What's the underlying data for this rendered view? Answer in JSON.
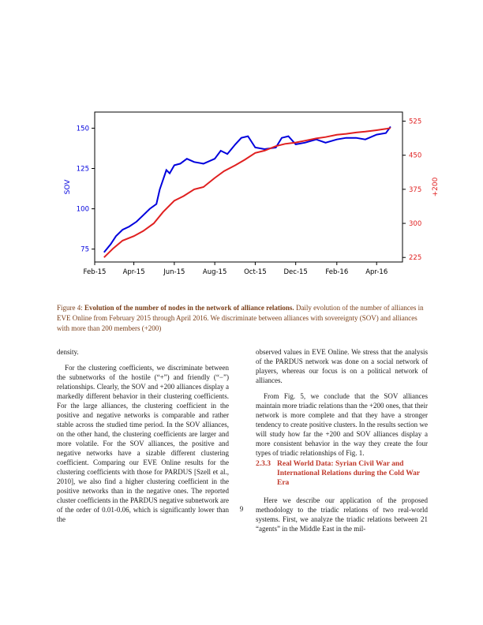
{
  "chart_data": {
    "type": "line",
    "xlabel": "",
    "ylabel": "SOV",
    "y2label": "+200",
    "x_ticks": [
      "Feb-15",
      "Apr-15",
      "Jun-15",
      "Aug-15",
      "Oct-15",
      "Dec-15",
      "Feb-16",
      "Apr-16"
    ],
    "y_ticks": [
      75,
      100,
      125,
      150
    ],
    "y2_ticks": [
      225,
      300,
      375,
      450,
      525
    ],
    "ylim": [
      67,
      160
    ],
    "y2lim": [
      215,
      545
    ],
    "grid": false,
    "colors": {
      "sov": "#0000dd",
      "plus200": "#e02020"
    },
    "series": [
      {
        "axis": "left",
        "points": [
          [
            "2015-02-15",
            73
          ],
          [
            "2015-02-25",
            78
          ],
          [
            "2015-03-05",
            83
          ],
          [
            "2015-03-15",
            87
          ],
          [
            "2015-03-25",
            89
          ],
          [
            "2015-04-05",
            92
          ],
          [
            "2015-04-15",
            96
          ],
          [
            "2015-04-25",
            100
          ],
          [
            "2015-05-05",
            103
          ],
          [
            "2015-05-10",
            112
          ],
          [
            "2015-05-15",
            118
          ],
          [
            "2015-05-20",
            124
          ],
          [
            "2015-05-25",
            122
          ],
          [
            "2015-06-01",
            127
          ],
          [
            "2015-06-10",
            128
          ],
          [
            "2015-06-20",
            131
          ],
          [
            "2015-07-01",
            129
          ],
          [
            "2015-07-15",
            128
          ],
          [
            "2015-08-01",
            131
          ],
          [
            "2015-08-10",
            136
          ],
          [
            "2015-08-20",
            134
          ],
          [
            "2015-09-01",
            140
          ],
          [
            "2015-09-10",
            144
          ],
          [
            "2015-09-20",
            145
          ],
          [
            "2015-10-01",
            138
          ],
          [
            "2015-10-15",
            137
          ],
          [
            "2015-11-01",
            138
          ],
          [
            "2015-11-10",
            144
          ],
          [
            "2015-11-20",
            145
          ],
          [
            "2015-12-01",
            140
          ],
          [
            "2015-12-15",
            141
          ],
          [
            "2016-01-01",
            143
          ],
          [
            "2016-01-15",
            141
          ],
          [
            "2016-02-01",
            143
          ],
          [
            "2016-02-15",
            144
          ],
          [
            "2016-03-01",
            144
          ],
          [
            "2016-03-15",
            143
          ],
          [
            "2016-04-01",
            146
          ],
          [
            "2016-04-15",
            147
          ],
          [
            "2016-04-22",
            151
          ]
        ]
      },
      {
        "axis": "right",
        "points": [
          [
            "2015-02-15",
            225
          ],
          [
            "2015-03-01",
            245
          ],
          [
            "2015-03-15",
            262
          ],
          [
            "2015-04-01",
            272
          ],
          [
            "2015-04-15",
            283
          ],
          [
            "2015-05-01",
            300
          ],
          [
            "2015-05-15",
            325
          ],
          [
            "2015-06-01",
            350
          ],
          [
            "2015-06-15",
            360
          ],
          [
            "2015-07-01",
            375
          ],
          [
            "2015-07-15",
            380
          ],
          [
            "2015-08-01",
            400
          ],
          [
            "2015-08-15",
            415
          ],
          [
            "2015-09-01",
            428
          ],
          [
            "2015-09-15",
            440
          ],
          [
            "2015-10-01",
            455
          ],
          [
            "2015-10-15",
            460
          ],
          [
            "2015-11-01",
            470
          ],
          [
            "2015-11-15",
            475
          ],
          [
            "2015-12-01",
            478
          ],
          [
            "2015-12-15",
            482
          ],
          [
            "2016-01-01",
            487
          ],
          [
            "2016-01-15",
            490
          ],
          [
            "2016-02-01",
            495
          ],
          [
            "2016-02-15",
            497
          ],
          [
            "2016-03-01",
            500
          ],
          [
            "2016-03-15",
            502
          ],
          [
            "2016-04-01",
            505
          ],
          [
            "2016-04-15",
            508
          ],
          [
            "2016-04-22",
            510
          ]
        ]
      }
    ]
  },
  "caption": {
    "label": "Figure 4:",
    "title": "Evolution of the number of nodes in the network of alliance relations.",
    "body": "Daily evolution of the number of alliances in EVE Online from February 2015 through April 2016. We discriminate between alliances with sovereignty (SOV) and alliances with more than 200 members (+200)"
  },
  "left_column": [
    "density.",
    "For the clustering coefficients, we discriminate between the subnetworks of the hostile (“+”) and friendly (“−”) relationships. Clearly, the SOV and +200 alliances display a markedly different behavior in their clustering coefficients. For the large alliances, the clustering coefficient in the positive and negative networks is comparable and rather stable across the studied time period. In the SOV alliances, on the other hand, the clustering coefficients are larger and more volatile. For the SOV alliances, the positive and negative networks have a sizable different clustering coefficient. Comparing our EVE Online results for the clustering coefficients with those for PARDUS [Szell et al., 2010], we also find a higher clustering coefficient in the positive networks than in the negative ones. The reported cluster coefficients in the PARDUS negative subnetwork are of the order of 0.01-0.06, which is significantly lower than the"
  ],
  "right_column": {
    "p1": "observed values in EVE Online. We stress that the analysis of the PARDUS network was done on a social network of players, whereas our focus is on a political network of alliances.",
    "p2": "From Fig. 5, we conclude that the SOV alliances maintain more triadic relations than the +200 ones, that their network is more complete and that they have a stronger tendency to create positive clusters. In the results section we will study how far the +200 and SOV alliances display a more consistent behavior in the way they create the four types of triadic relationships of Fig. 1.",
    "section_num": "2.3.3",
    "section_title": "Real World Data: Syrian Civil War and International Relations during the Cold War Era",
    "p3": "Here we describe our application of the proposed methodology to the triadic relations of two real-world systems. First, we analyze the triadic relations between 21 “agents” in the Middle East in the mil-"
  },
  "page_number": "9"
}
